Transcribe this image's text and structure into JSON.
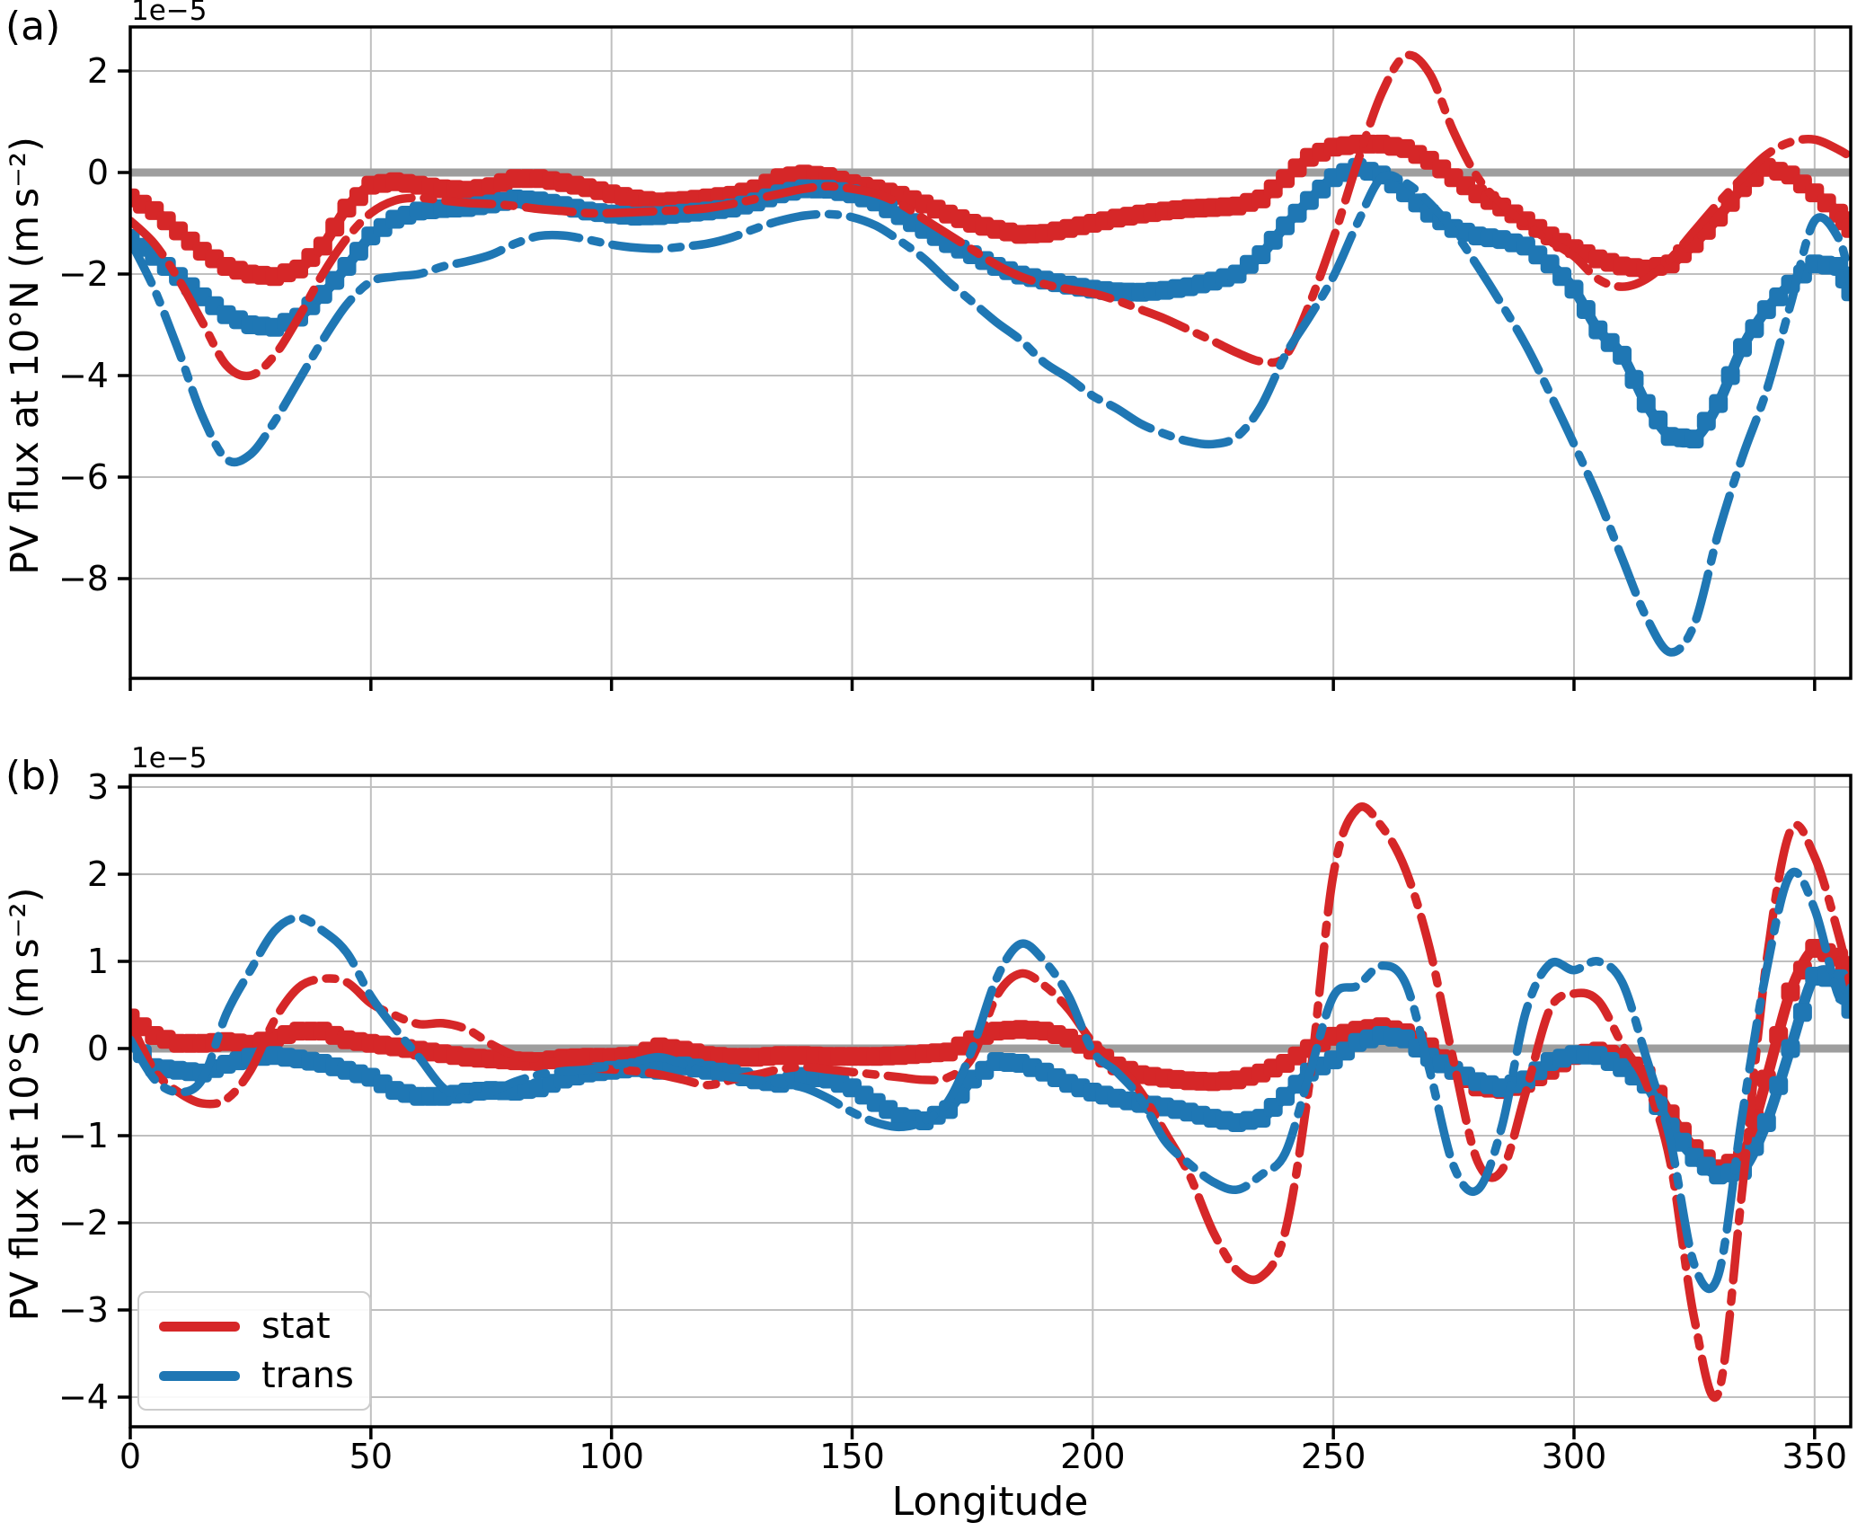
{
  "figure": {
    "bg": "#ffffff"
  },
  "colors": {
    "stat": "#d62728",
    "trans": "#1f77b4",
    "zero_line": "#9e9e9e",
    "grid": "#bfbfbf",
    "spine": "#000000",
    "text": "#000000"
  },
  "legend": {
    "items": [
      {
        "label": "stat",
        "color": "#d62728"
      },
      {
        "label": "trans",
        "color": "#1f77b4"
      }
    ]
  },
  "xaxis": {
    "label": "Longitude",
    "tick_labels": [
      "0",
      "50",
      "100",
      "150",
      "200",
      "250",
      "300",
      "350"
    ],
    "tick_values": [
      0,
      50,
      100,
      150,
      200,
      250,
      300,
      350
    ],
    "lim": [
      0,
      357.5
    ]
  },
  "chart_data": [
    {
      "type": "line",
      "panel_tag": "(a)",
      "ylabel": "PV flux at 10°N (m s⁻²)",
      "offset_text": "1e−5",
      "units": "1e-5 m s^-2",
      "xlabel": "Longitude",
      "grid": true,
      "legend_position": "lower left (panel b)",
      "ylim": [
        -9.96,
        2.87
      ],
      "ytick_labels": [
        "2",
        "0",
        "−2",
        "−4",
        "−6",
        "−8"
      ],
      "ytick_values": [
        2,
        0,
        -2,
        -4,
        -6,
        -8
      ],
      "zero_line": 0,
      "x": [
        0,
        5,
        10,
        15,
        20,
        25,
        30,
        35,
        40,
        45,
        50,
        55,
        60,
        65,
        70,
        75,
        80,
        85,
        90,
        95,
        100,
        105,
        110,
        115,
        120,
        125,
        130,
        135,
        140,
        145,
        150,
        155,
        160,
        165,
        170,
        175,
        180,
        185,
        190,
        195,
        200,
        205,
        210,
        215,
        220,
        225,
        230,
        235,
        240,
        245,
        250,
        255,
        260,
        265,
        270,
        275,
        280,
        285,
        290,
        295,
        300,
        305,
        310,
        315,
        320,
        325,
        330,
        335,
        340,
        345,
        350,
        355,
        357.5
      ],
      "series": [
        {
          "name": "stat_solid",
          "legend": "stat",
          "style": "solid_markers",
          "color": "#d62728",
          "values": [
            -0.5,
            -0.75,
            -1.15,
            -1.55,
            -1.85,
            -2.0,
            -2.05,
            -1.9,
            -1.45,
            -0.7,
            -0.25,
            -0.18,
            -0.25,
            -0.32,
            -0.35,
            -0.28,
            -0.12,
            -0.12,
            -0.2,
            -0.3,
            -0.42,
            -0.52,
            -0.58,
            -0.55,
            -0.5,
            -0.45,
            -0.32,
            -0.1,
            -0.03,
            -0.08,
            -0.22,
            -0.32,
            -0.45,
            -0.62,
            -0.82,
            -1.0,
            -1.12,
            -1.22,
            -1.2,
            -1.1,
            -1.0,
            -0.9,
            -0.82,
            -0.76,
            -0.71,
            -0.69,
            -0.66,
            -0.52,
            -0.12,
            0.3,
            0.5,
            0.56,
            0.56,
            0.47,
            0.24,
            -0.1,
            -0.42,
            -0.68,
            -0.95,
            -1.25,
            -1.5,
            -1.7,
            -1.84,
            -1.9,
            -1.8,
            -1.4,
            -0.88,
            -0.3,
            0.1,
            -0.05,
            -0.4,
            -0.8,
            -1.1
          ]
        },
        {
          "name": "trans_solid",
          "legend": "trans",
          "style": "solid_markers",
          "color": "#1f77b4",
          "values": [
            -1.3,
            -1.65,
            -2.05,
            -2.45,
            -2.8,
            -3.0,
            -3.05,
            -2.85,
            -2.4,
            -1.85,
            -1.25,
            -0.92,
            -0.76,
            -0.71,
            -0.69,
            -0.62,
            -0.52,
            -0.56,
            -0.65,
            -0.76,
            -0.82,
            -0.86,
            -0.85,
            -0.8,
            -0.76,
            -0.7,
            -0.58,
            -0.42,
            -0.32,
            -0.33,
            -0.42,
            -0.58,
            -0.85,
            -1.12,
            -1.4,
            -1.62,
            -1.85,
            -2.02,
            -2.12,
            -2.22,
            -2.3,
            -2.35,
            -2.36,
            -2.32,
            -2.25,
            -2.14,
            -2.0,
            -1.62,
            -1.05,
            -0.55,
            -0.1,
            0.1,
            -0.05,
            -0.4,
            -0.8,
            -1.1,
            -1.25,
            -1.32,
            -1.45,
            -1.8,
            -2.3,
            -3.1,
            -3.6,
            -4.55,
            -5.2,
            -5.25,
            -4.55,
            -3.45,
            -2.7,
            -2.2,
            -1.8,
            -1.85,
            -2.35
          ]
        },
        {
          "name": "stat_dashdot",
          "legend": "stat",
          "style": "dashdot",
          "color": "#d62728",
          "values": [
            -0.95,
            -1.4,
            -2.1,
            -2.95,
            -3.8,
            -4.0,
            -3.6,
            -2.85,
            -2.0,
            -1.3,
            -0.8,
            -0.55,
            -0.5,
            -0.55,
            -0.6,
            -0.62,
            -0.66,
            -0.72,
            -0.76,
            -0.8,
            -0.8,
            -0.78,
            -0.76,
            -0.74,
            -0.7,
            -0.62,
            -0.52,
            -0.42,
            -0.32,
            -0.27,
            -0.32,
            -0.42,
            -0.62,
            -0.92,
            -1.22,
            -1.52,
            -1.82,
            -2.05,
            -2.2,
            -2.3,
            -2.38,
            -2.52,
            -2.7,
            -2.88,
            -3.1,
            -3.32,
            -3.55,
            -3.72,
            -3.62,
            -2.6,
            -1.3,
            0.2,
            1.55,
            2.3,
            1.95,
            0.8,
            -0.1,
            -0.62,
            -1.02,
            -1.35,
            -1.65,
            -2.1,
            -2.25,
            -2.1,
            -1.7,
            -1.15,
            -0.6,
            -0.1,
            0.35,
            0.6,
            0.65,
            0.45,
            0.3
          ]
        },
        {
          "name": "trans_dashdot",
          "legend": "trans",
          "style": "dashdot",
          "color": "#1f77b4",
          "values": [
            -1.35,
            -2.3,
            -3.5,
            -4.8,
            -5.65,
            -5.55,
            -4.9,
            -4.1,
            -3.3,
            -2.6,
            -2.15,
            -2.05,
            -2.0,
            -1.85,
            -1.75,
            -1.62,
            -1.4,
            -1.25,
            -1.24,
            -1.32,
            -1.42,
            -1.48,
            -1.5,
            -1.46,
            -1.4,
            -1.28,
            -1.1,
            -0.95,
            -0.85,
            -0.82,
            -0.88,
            -1.05,
            -1.35,
            -1.7,
            -2.15,
            -2.55,
            -2.95,
            -3.3,
            -3.75,
            -4.05,
            -4.4,
            -4.65,
            -4.95,
            -5.15,
            -5.3,
            -5.35,
            -5.2,
            -4.6,
            -3.6,
            -2.85,
            -2.05,
            -1.0,
            -0.1,
            -0.2,
            -0.6,
            -1.15,
            -1.85,
            -2.6,
            -3.4,
            -4.35,
            -5.35,
            -6.4,
            -7.6,
            -8.75,
            -9.45,
            -8.9,
            -7.1,
            -5.6,
            -4.3,
            -2.6,
            -0.95,
            -1.3,
            -2.2
          ]
        }
      ]
    },
    {
      "type": "line",
      "panel_tag": "(b)",
      "ylabel": "PV flux at 10°S (m s⁻²)",
      "offset_text": "1e−5",
      "units": "1e-5 m s^-2",
      "xlabel": "Longitude",
      "grid": true,
      "ylim": [
        -4.34,
        3.13
      ],
      "ytick_labels": [
        "3",
        "2",
        "1",
        "0",
        "−1",
        "−2",
        "−3",
        "−4"
      ],
      "ytick_values": [
        3,
        2,
        1,
        0,
        -1,
        -2,
        -3,
        -4
      ],
      "zero_line": 0,
      "x": [
        0,
        5,
        10,
        15,
        20,
        25,
        30,
        35,
        40,
        45,
        50,
        55,
        60,
        65,
        70,
        75,
        80,
        85,
        90,
        95,
        100,
        105,
        110,
        115,
        120,
        125,
        130,
        135,
        140,
        145,
        150,
        155,
        160,
        165,
        170,
        175,
        180,
        185,
        190,
        195,
        200,
        205,
        210,
        215,
        220,
        225,
        230,
        235,
        240,
        245,
        250,
        255,
        260,
        265,
        270,
        275,
        280,
        285,
        290,
        295,
        300,
        305,
        310,
        315,
        320,
        325,
        330,
        335,
        340,
        345,
        350,
        355,
        357.5
      ],
      "series": [
        {
          "name": "stat_solid",
          "legend": "stat",
          "style": "solid_markers",
          "color": "#d62728",
          "values": [
            0.35,
            0.15,
            0.06,
            0.06,
            0.08,
            0.05,
            0.12,
            0.2,
            0.2,
            0.1,
            0.06,
            0.02,
            -0.02,
            -0.06,
            -0.1,
            -0.12,
            -0.14,
            -0.15,
            -0.11,
            -0.1,
            -0.1,
            -0.08,
            0.02,
            -0.02,
            -0.08,
            -0.1,
            -0.1,
            -0.08,
            -0.08,
            -0.09,
            -0.09,
            -0.09,
            -0.08,
            -0.06,
            -0.04,
            0.1,
            0.2,
            0.22,
            0.2,
            0.12,
            -0.02,
            -0.2,
            -0.3,
            -0.34,
            -0.37,
            -0.38,
            -0.36,
            -0.28,
            -0.17,
            0.0,
            0.14,
            0.21,
            0.25,
            0.18,
            0.02,
            -0.25,
            -0.44,
            -0.47,
            -0.4,
            -0.25,
            -0.08,
            -0.03,
            -0.1,
            -0.3,
            -0.75,
            -1.15,
            -1.38,
            -1.25,
            -0.35,
            0.65,
            1.15,
            1.05,
            0.85
          ]
        },
        {
          "name": "trans_solid",
          "legend": "trans",
          "style": "solid_markers",
          "color": "#1f77b4",
          "values": [
            0.1,
            -0.22,
            -0.25,
            -0.28,
            -0.18,
            -0.1,
            -0.08,
            -0.12,
            -0.17,
            -0.25,
            -0.33,
            -0.48,
            -0.55,
            -0.55,
            -0.5,
            -0.48,
            -0.49,
            -0.45,
            -0.35,
            -0.28,
            -0.25,
            -0.22,
            -0.25,
            -0.2,
            -0.25,
            -0.29,
            -0.36,
            -0.4,
            -0.32,
            -0.35,
            -0.45,
            -0.62,
            -0.78,
            -0.83,
            -0.7,
            -0.35,
            -0.15,
            -0.17,
            -0.27,
            -0.4,
            -0.5,
            -0.57,
            -0.63,
            -0.67,
            -0.73,
            -0.8,
            -0.85,
            -0.8,
            -0.55,
            -0.27,
            -0.13,
            0.07,
            0.15,
            0.11,
            -0.1,
            -0.25,
            -0.38,
            -0.45,
            -0.36,
            -0.15,
            -0.07,
            -0.08,
            -0.22,
            -0.41,
            -0.9,
            -1.25,
            -1.45,
            -1.4,
            -0.85,
            0.0,
            0.83,
            0.8,
            0.45
          ]
        },
        {
          "name": "stat_dashdot",
          "legend": "stat",
          "style": "dashdot",
          "color": "#d62728",
          "values": [
            0.3,
            -0.25,
            -0.5,
            -0.63,
            -0.58,
            -0.25,
            0.33,
            0.7,
            0.8,
            0.76,
            0.52,
            0.38,
            0.28,
            0.29,
            0.22,
            0.05,
            -0.08,
            -0.12,
            -0.18,
            -0.22,
            -0.24,
            -0.26,
            -0.3,
            -0.36,
            -0.42,
            -0.36,
            -0.3,
            -0.24,
            -0.21,
            -0.24,
            -0.27,
            -0.3,
            -0.33,
            -0.36,
            -0.33,
            -0.1,
            0.6,
            0.86,
            0.72,
            0.45,
            0.07,
            -0.17,
            -0.5,
            -0.96,
            -1.44,
            -2.1,
            -2.55,
            -2.62,
            -2.1,
            -0.4,
            2.0,
            2.75,
            2.55,
            2.05,
            1.15,
            -0.15,
            -1.3,
            -1.4,
            -0.5,
            0.45,
            0.63,
            0.55,
            0.05,
            -0.4,
            -1.3,
            -3.1,
            -3.95,
            -1.6,
            1.0,
            2.5,
            2.2,
            1.3,
            0.7
          ]
        },
        {
          "name": "trans_dashdot",
          "legend": "trans",
          "style": "dashdot",
          "color": "#1f77b4",
          "values": [
            0.1,
            -0.35,
            -0.5,
            -0.35,
            0.4,
            0.9,
            1.35,
            1.5,
            1.35,
            1.1,
            0.6,
            0.23,
            -0.1,
            -0.45,
            -0.58,
            -0.5,
            -0.38,
            -0.3,
            -0.26,
            -0.24,
            -0.2,
            -0.15,
            -0.1,
            -0.18,
            -0.28,
            -0.33,
            -0.36,
            -0.4,
            -0.45,
            -0.57,
            -0.73,
            -0.85,
            -0.9,
            -0.83,
            -0.6,
            0.0,
            0.8,
            1.2,
            1.0,
            0.6,
            -0.03,
            -0.27,
            -0.58,
            -1.06,
            -1.32,
            -1.53,
            -1.62,
            -1.45,
            -1.2,
            -0.3,
            0.6,
            0.72,
            0.95,
            0.75,
            -0.25,
            -1.35,
            -1.62,
            -0.9,
            0.42,
            0.97,
            0.9,
            1.0,
            0.76,
            -0.1,
            -1.05,
            -2.48,
            -2.6,
            -0.75,
            0.9,
            2.0,
            1.6,
            0.6,
            0.7
          ]
        }
      ]
    }
  ]
}
